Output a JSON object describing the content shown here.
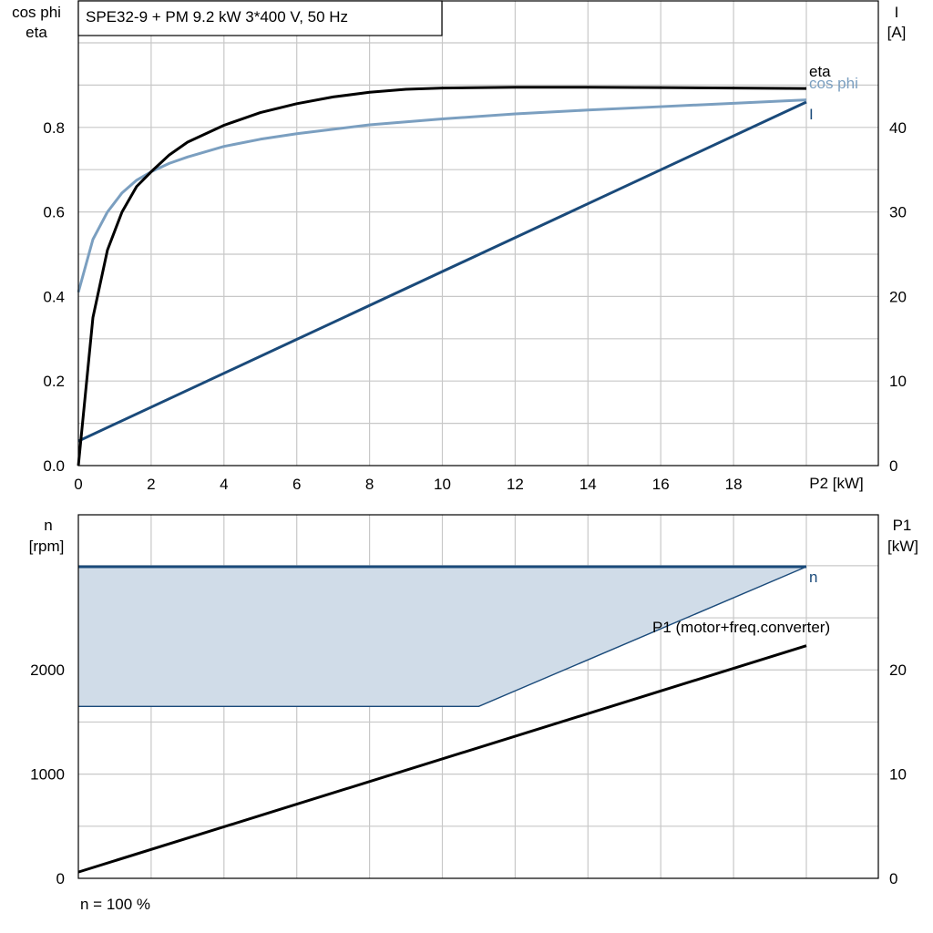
{
  "title": "SPE32-9 + PM   9.2 kW   3*400 V, 50 Hz",
  "footer": "n = 100 %",
  "colors": {
    "eta": "#000000",
    "cos_phi": "#7b9fc0",
    "current": "#1a4a7a",
    "speed": "#1a4a7a",
    "speed_fill": "#d0dce8",
    "p1": "#000000",
    "grid": "#c8c8c8"
  },
  "chart_data": [
    {
      "type": "line",
      "name": "top",
      "xlabel": "P2 [kW]",
      "ylabel_left": [
        "cos phi",
        "eta"
      ],
      "ylabel_right": [
        "I",
        "[A]"
      ],
      "xlim": [
        0,
        20
      ],
      "ylim_left": [
        0,
        1.0
      ],
      "ylim_right": [
        0,
        50
      ],
      "x_ticks": [
        "0",
        "2",
        "4",
        "6",
        "8",
        "10",
        "12",
        "14",
        "16",
        "18"
      ],
      "y_left_ticks": [
        "0.0",
        "0.2",
        "0.4",
        "0.6",
        "0.8"
      ],
      "y_right_ticks": [
        "0",
        "10",
        "20",
        "30",
        "40"
      ],
      "grid": true,
      "series": [
        {
          "name": "eta",
          "axis": "left",
          "color": "#000000",
          "x": [
            0,
            0.4,
            0.8,
            1.2,
            1.6,
            2.0,
            2.5,
            3,
            4,
            5,
            6,
            7,
            8,
            9,
            10,
            12,
            14,
            16,
            18,
            20
          ],
          "y": [
            0,
            0.35,
            0.51,
            0.6,
            0.66,
            0.695,
            0.735,
            0.765,
            0.805,
            0.835,
            0.856,
            0.872,
            0.883,
            0.89,
            0.893,
            0.895,
            0.895,
            0.894,
            0.893,
            0.892
          ]
        },
        {
          "name": "cos phi",
          "axis": "left",
          "color": "#7b9fc0",
          "x": [
            0,
            0.4,
            0.8,
            1.2,
            1.6,
            2.0,
            2.5,
            3,
            4,
            5,
            6,
            8,
            10,
            12,
            14,
            16,
            18,
            20
          ],
          "y": [
            0.41,
            0.535,
            0.6,
            0.645,
            0.675,
            0.695,
            0.715,
            0.73,
            0.755,
            0.772,
            0.785,
            0.806,
            0.82,
            0.832,
            0.841,
            0.849,
            0.857,
            0.865
          ]
        },
        {
          "name": "I",
          "axis": "right",
          "color": "#1a4a7a",
          "x": [
            0,
            20
          ],
          "y": [
            2.9,
            43
          ]
        }
      ]
    },
    {
      "type": "area",
      "name": "bottom",
      "ylabel_left": [
        "n",
        "[rpm]"
      ],
      "ylabel_right": [
        "P1",
        "[kW]"
      ],
      "xlim": [
        0,
        20
      ],
      "ylim_left": [
        0,
        3000
      ],
      "ylim_right": [
        0,
        30
      ],
      "y_left_ticks": [
        "0",
        "1000",
        "2000"
      ],
      "y_left_tick_values": [
        0,
        1000,
        2000
      ],
      "y_right_ticks": [
        "0",
        "10",
        "20"
      ],
      "y_right_tick_values": [
        0,
        10,
        20
      ],
      "grid": true,
      "n_max": {
        "x": [
          0,
          20
        ],
        "y": [
          2990,
          2990
        ]
      },
      "n_min_region": {
        "x": [
          0,
          11,
          20
        ],
        "y": [
          1650,
          1650,
          2990
        ]
      },
      "series": [
        {
          "name": "n",
          "axis": "left",
          "color": "#1a4a7a",
          "x": [
            0,
            20
          ],
          "y": [
            2990,
            2990
          ]
        },
        {
          "name": "P1 (motor+freq.converter)",
          "axis": "right",
          "color": "#000000",
          "x": [
            0,
            20
          ],
          "y": [
            0.6,
            22.3
          ]
        }
      ]
    }
  ]
}
